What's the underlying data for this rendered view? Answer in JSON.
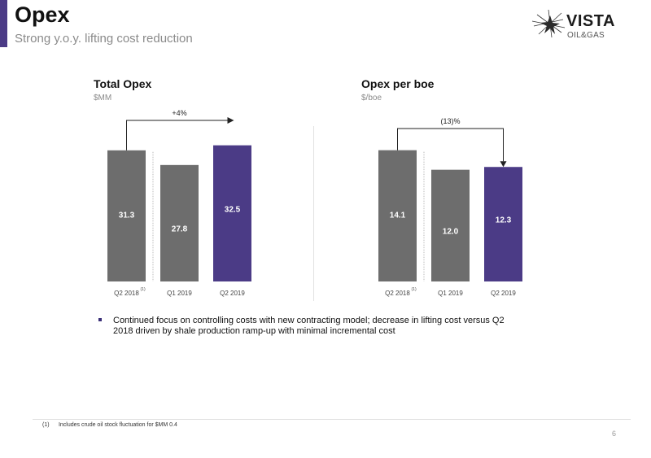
{
  "header": {
    "title": "Opex",
    "subtitle": "Strong y.o.y. lifting cost reduction",
    "accent_color": "#4b3b86"
  },
  "logo": {
    "word": "VISTA",
    "sub": "OIL&GAS",
    "icon": "star-burst-icon"
  },
  "chart_data": [
    {
      "type": "bar",
      "title": "Total Opex",
      "ylabel": "$MM",
      "categories": [
        "Q2 2018",
        "Q1 2019",
        "Q2 2019"
      ],
      "category_superscripts": [
        "(1)",
        "",
        ""
      ],
      "values": [
        31.3,
        27.8,
        32.5
      ],
      "colors": [
        "#6d6d6d",
        "#6d6d6d",
        "#4b3b86"
      ],
      "ylim": [
        0,
        40
      ],
      "annotation": {
        "text": "+4%",
        "from": "Q2 2018",
        "to": "Q2 2019"
      },
      "legend": "none",
      "grid": false
    },
    {
      "type": "bar",
      "title": "Opex per boe",
      "ylabel": "$/boe",
      "categories": [
        "Q2 2018",
        "Q1 2019",
        "Q2 2019"
      ],
      "category_superscripts": [
        "(1)",
        "",
        ""
      ],
      "values": [
        14.1,
        12.0,
        12.3
      ],
      "colors": [
        "#6d6d6d",
        "#6d6d6d",
        "#4b3b86"
      ],
      "ylim": [
        0,
        18
      ],
      "annotation": {
        "text": "(13)%",
        "from": "Q2 2018",
        "to": "Q2 2019"
      },
      "legend": "none",
      "grid": false
    }
  ],
  "bullets": [
    "Continued focus on controlling costs with new contracting model; decrease in lifting cost versus Q2 2018 driven by shale production ramp-up with minimal incremental cost"
  ],
  "footnote": {
    "number": "(1)",
    "text": "Includes crude oil stock fluctuation for $MM 0.4"
  },
  "page_number": "6"
}
